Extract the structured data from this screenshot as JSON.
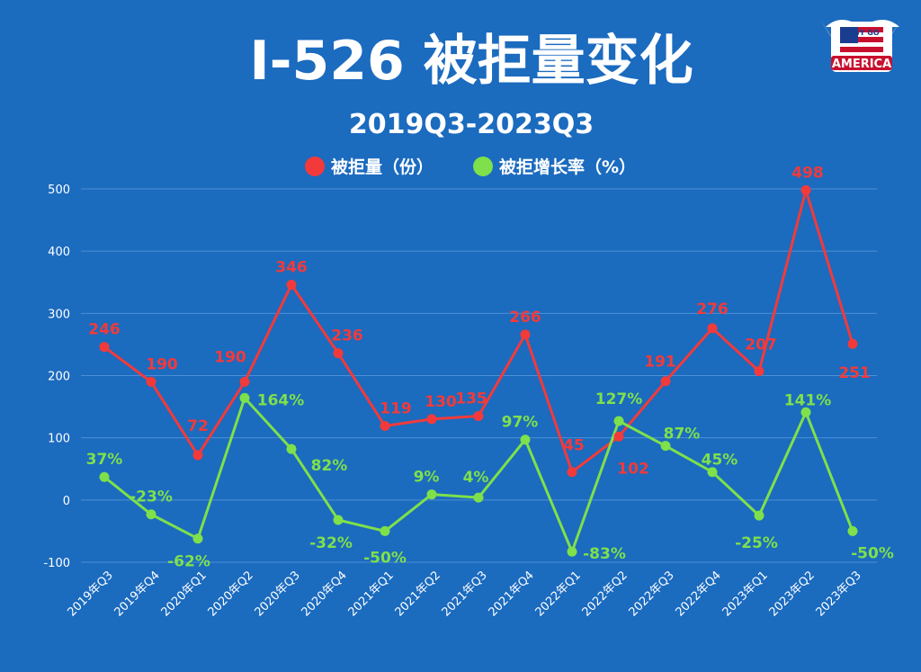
{
  "logo": {
    "top_text": "EASY GO",
    "main_text": "AMERICA"
  },
  "chart_data": {
    "type": "line",
    "title": "I-526 被拒量变化",
    "subtitle": "2019Q3-2023Q3",
    "categories": [
      "2019年Q3",
      "2019年Q4",
      "2020年Q1",
      "2020年Q2",
      "2020年Q3",
      "2020年Q4",
      "2021年Q1",
      "2021年Q2",
      "2021年Q3",
      "2021年Q4",
      "2022年Q1",
      "2022年Q2",
      "2022年Q3",
      "2022年Q4",
      "2023年Q1",
      "2023年Q2",
      "2023年Q3"
    ],
    "ylim": [
      -100,
      500
    ],
    "yticks": [
      -100,
      0,
      100,
      200,
      300,
      400,
      500
    ],
    "grid": true,
    "legend_position": "top-center",
    "series": [
      {
        "name": "被拒量（份）",
        "color": "#f23a3a",
        "values": [
          246,
          190,
          72,
          190,
          346,
          236,
          119,
          130,
          135,
          266,
          45,
          102,
          191,
          276,
          207,
          498,
          251
        ],
        "labels": [
          "246",
          "190",
          "72",
          "190",
          "346",
          "236",
          "119",
          "130",
          "135",
          "266",
          "45",
          "102",
          "191",
          "276",
          "207",
          "498",
          "251"
        ]
      },
      {
        "name": "被拒增长率（%）",
        "color": "#7ee04b",
        "values": [
          37,
          -23,
          -62,
          164,
          82,
          -32,
          -50,
          9,
          4,
          97,
          -83,
          127,
          87,
          45,
          -25,
          141,
          -50
        ],
        "labels": [
          "37%",
          "-23%",
          "-62%",
          "164%",
          "82%",
          "-32%",
          "-50%",
          "9%",
          "4%",
          "97%",
          "-83%",
          "127%",
          "87%",
          "45%",
          "-25%",
          "141%",
          "-50%"
        ]
      }
    ]
  }
}
